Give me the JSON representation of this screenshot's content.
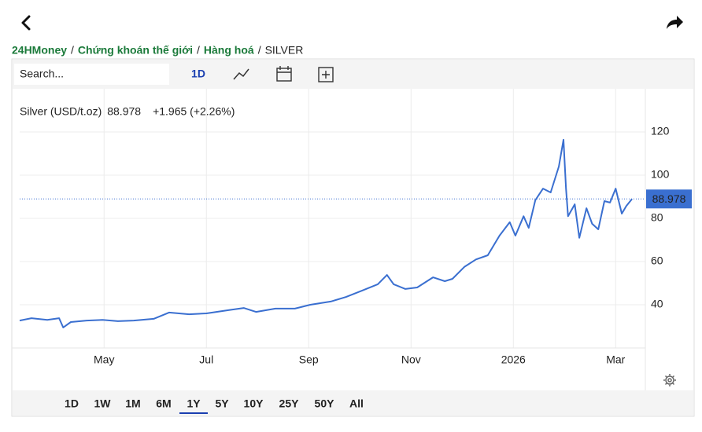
{
  "breadcrumb": {
    "items": [
      "24HMoney",
      "Chứng khoán thế giới",
      "Hàng hoá",
      "SILVER"
    ],
    "separator": "/"
  },
  "toolbar": {
    "search_placeholder": "Search...",
    "interval": "1D"
  },
  "chart_data": {
    "type": "line",
    "series": [
      {
        "name": "Silver (USD/t.oz)",
        "color": "#3a6fd0",
        "values": [
          32.7,
          33.8,
          33,
          33.8,
          29.5,
          32,
          32.7,
          33,
          32.4,
          32.7,
          33.5,
          36.4,
          35.6,
          36,
          37.5,
          38.5,
          36.7,
          38.2,
          38.2,
          40,
          41.5,
          43.6,
          46.5,
          49.5,
          53.8,
          49.5,
          47.3,
          48,
          52.7,
          50.9,
          52,
          57.5,
          61,
          62.9,
          72,
          78.2,
          72,
          81,
          75.6,
          88.4,
          93.8,
          92,
          104,
          116.4,
          93.8,
          81,
          86.5,
          71,
          84.7,
          77.5,
          74.9,
          88,
          87.3,
          93.8,
          82.2,
          85.8,
          88.978
        ]
      }
    ],
    "x": [
      3.35,
      3.58,
      3.89,
      4.12,
      4.2,
      4.35,
      4.66,
      4.97,
      5.27,
      5.58,
      5.97,
      6.27,
      6.66,
      7,
      7.43,
      7.73,
      7.97,
      8.35,
      8.73,
      9.03,
      9.43,
      9.73,
      10.04,
      10.35,
      10.53,
      10.66,
      10.89,
      11.12,
      11.43,
      11.66,
      11.81,
      12.04,
      12.27,
      12.5,
      12.73,
      12.93,
      13.04,
      13.2,
      13.3,
      13.43,
      13.58,
      13.73,
      13.89,
      13.98,
      14.03,
      14.07,
      14.2,
      14.29,
      14.43,
      14.54,
      14.66,
      14.78,
      14.89,
      15,
      15.12,
      15.21,
      15.32
    ],
    "xlim": [
      3.35,
      15.58
    ],
    "xticks": [
      {
        "value": 5,
        "label": "May"
      },
      {
        "value": 7,
        "label": "Jul"
      },
      {
        "value": 9,
        "label": "Sep"
      },
      {
        "value": 11,
        "label": "Nov"
      },
      {
        "value": 13,
        "label": "2026"
      },
      {
        "value": 15,
        "label": "Mar"
      }
    ],
    "ylim": [
      20,
      140
    ],
    "yticks": [
      40,
      60,
      80,
      100,
      120
    ],
    "grid": true,
    "last_price": 88.978,
    "change": "+1.965 (+2.26%)",
    "change_color": "#3aa34a"
  },
  "ranges": {
    "items": [
      "1D",
      "1W",
      "1M",
      "6M",
      "1Y",
      "5Y",
      "10Y",
      "25Y",
      "50Y",
      "All"
    ],
    "selected": "1Y"
  }
}
